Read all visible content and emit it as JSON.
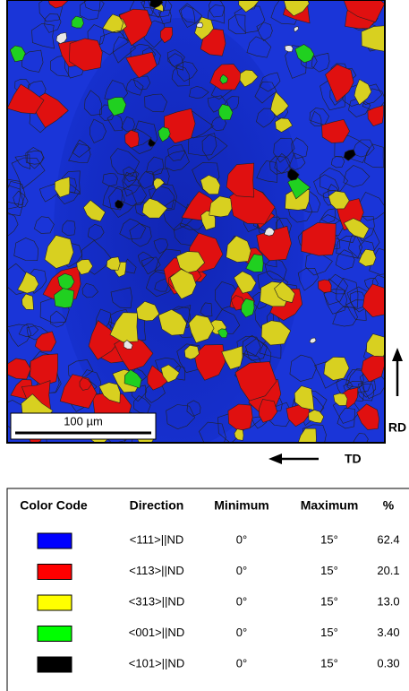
{
  "figure": {
    "scale_bar": "100 µm",
    "rd_label": "RD",
    "td_label": "TD"
  },
  "table": {
    "headers": [
      "Color Code",
      "Direction",
      "Minimum",
      "Maximum",
      "%"
    ],
    "rows": [
      {
        "color": "#0000ff",
        "direction": "<111>||ND",
        "minimum": "0°",
        "maximum": "15°",
        "percent": "62.4"
      },
      {
        "color": "#ff0000",
        "direction": "<113>||ND",
        "minimum": "0°",
        "maximum": "15°",
        "percent": "20.1"
      },
      {
        "color": "#ffff00",
        "direction": "<313>||ND",
        "minimum": "0°",
        "maximum": "15°",
        "percent": "13.0"
      },
      {
        "color": "#00ff00",
        "direction": "<001>||ND",
        "minimum": "0°",
        "maximum": "15°",
        "percent": "3.40"
      },
      {
        "color": "#000000",
        "direction": "<101>||ND",
        "minimum": "0°",
        "maximum": "15°",
        "percent": "0.30"
      }
    ]
  }
}
